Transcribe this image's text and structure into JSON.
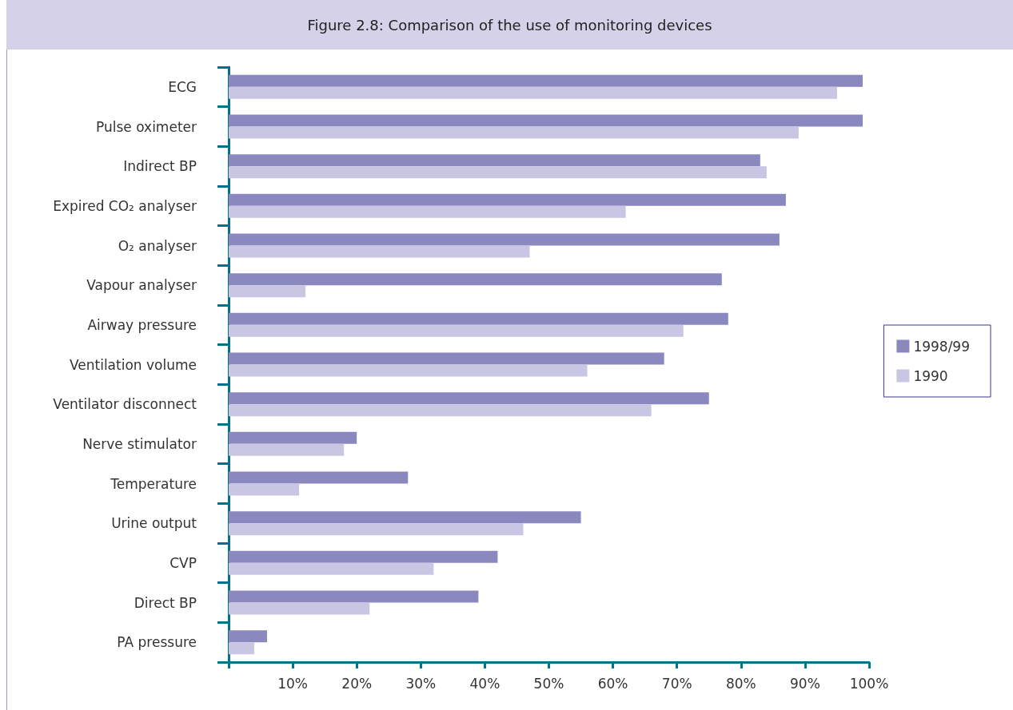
{
  "chart_data": {
    "type": "bar",
    "orientation": "horizontal",
    "title": "Figure 2.8: Comparison of the use of monitoring devices",
    "categories": [
      "ECG",
      "Pulse oximeter",
      "Indirect BP",
      "Expired CO₂ analyser",
      "O₂ analyser",
      "Vapour analyser",
      "Airway pressure",
      "Ventilation volume",
      "Ventilator disconnect",
      "Nerve stimulator",
      "Temperature",
      "Urine output",
      "CVP",
      "Direct BP",
      "PA pressure"
    ],
    "series": [
      {
        "name": "1998/99",
        "color": "#8b88c0",
        "values": [
          99,
          99,
          83,
          87,
          86,
          77,
          78,
          68,
          75,
          20,
          28,
          55,
          42,
          39,
          6
        ]
      },
      {
        "name": "1990",
        "color": "#c9c6e4",
        "values": [
          95,
          89,
          84,
          62,
          47,
          12,
          71,
          56,
          66,
          18,
          11,
          46,
          32,
          22,
          4
        ]
      }
    ],
    "xlim": [
      0,
      100
    ],
    "xticks": [
      {
        "value": 0,
        "label": null
      },
      {
        "value": 10,
        "label": "10%"
      },
      {
        "value": 20,
        "label": "20%"
      },
      {
        "value": 30,
        "label": "30%"
      },
      {
        "value": 40,
        "label": "40%"
      },
      {
        "value": 50,
        "label": "50%"
      },
      {
        "value": 60,
        "label": "60%"
      },
      {
        "value": 70,
        "label": "70%"
      },
      {
        "value": 80,
        "label": "80%"
      },
      {
        "value": 90,
        "label": "90%"
      },
      {
        "value": 100,
        "label": "100%"
      }
    ],
    "grid": false,
    "legend": "right"
  }
}
